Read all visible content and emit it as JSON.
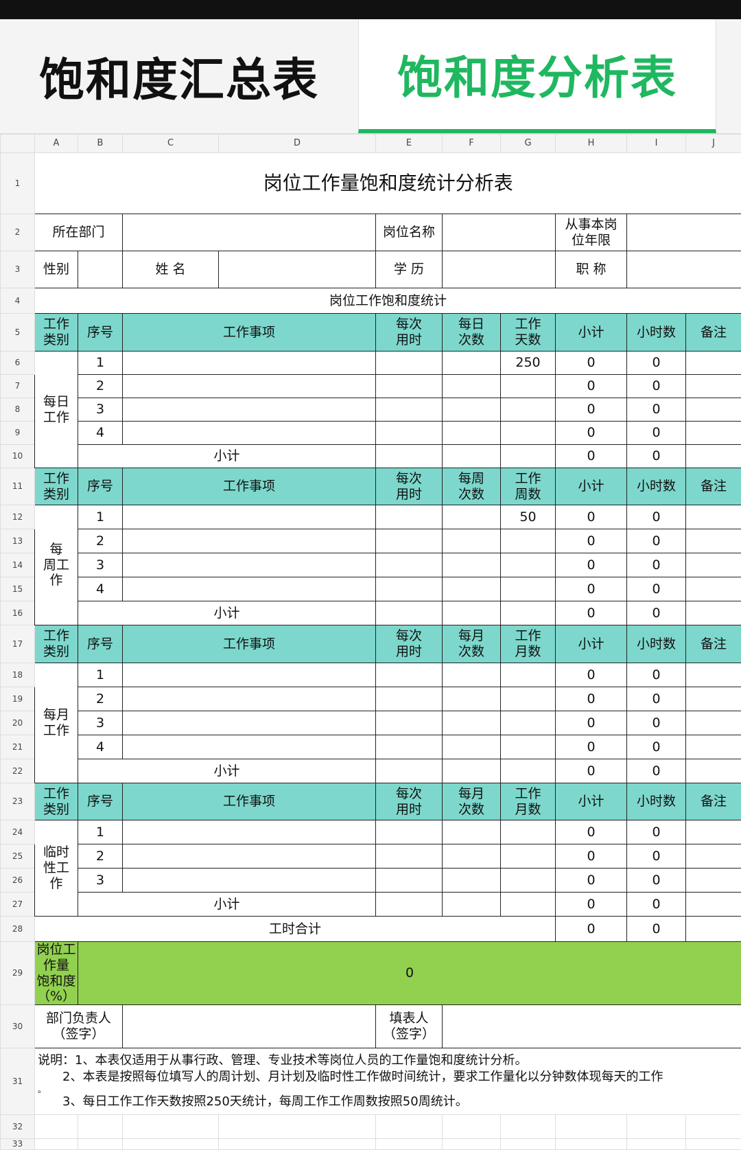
{
  "tabs": [
    {
      "label": "饱和度汇总表",
      "active": false
    },
    {
      "label": "饱和度分析表",
      "active": true
    }
  ],
  "accent_color": "#1fb760",
  "header_fill": "#7dd7cc",
  "saturation_fill": "#92d050",
  "columns": [
    "A",
    "B",
    "C",
    "D",
    "E",
    "F",
    "G",
    "H",
    "I",
    "J"
  ],
  "row_numbers": [
    "1",
    "2",
    "3",
    "4",
    "5",
    "6",
    "7",
    "8",
    "9",
    "10",
    "11",
    "12",
    "13",
    "14",
    "15",
    "16",
    "17",
    "18",
    "19",
    "20",
    "21",
    "22",
    "23",
    "24",
    "25",
    "26",
    "27",
    "28",
    "29",
    "30",
    "31",
    "32",
    "33"
  ],
  "sheet": {
    "title": "岗位工作量饱和度统计分析表",
    "dept_label": "所在部门",
    "post_label": "岗位名称",
    "years_label": "从事本岗\n位年限",
    "gender_label": "性别",
    "name_label": "姓 名",
    "edu_label": "学 历",
    "rank_label": "职 称",
    "section_title": "岗位工作饱和度统计",
    "total_label": "工时合计",
    "total_h": "0",
    "total_i": "0",
    "saturation_label": "岗位工作量\n饱和度（%）",
    "saturation_value": "0",
    "manager_label": "部门负责人\n（签字）",
    "filler_label": "填表人（签字）",
    "notes": [
      "说明：1、本表仅适用于从事行政、管理、专业技术等岗位人员的工作量饱和度统计分析。",
      "　　2、本表是按照每位填写人的周计划、月计划及临时性工作做时间统计，要求工作量化以分钟数体现每天的工作",
      "。",
      "　　3、每日工作工作天数按照250天统计，每周工作工作周数按照50周统计。"
    ]
  },
  "sections": {
    "daily": {
      "category": "每日\n工作",
      "headers": [
        "工作\n类别",
        "序号",
        "工作事项",
        "每次\n用时",
        "每日\n次数",
        "工作\n天数",
        "小计",
        "小时数",
        "备注"
      ],
      "rows": [
        {
          "seq": "1",
          "g": "250",
          "h": "0",
          "i": "0"
        },
        {
          "seq": "2",
          "h": "0",
          "i": "0"
        },
        {
          "seq": "3",
          "h": "0",
          "i": "0"
        },
        {
          "seq": "4",
          "h": "0",
          "i": "0"
        }
      ],
      "subtotal": {
        "label": "小计",
        "h": "0",
        "i": "0"
      }
    },
    "weekly": {
      "category": "每\n周工\n作",
      "headers": [
        "工作\n类别",
        "序号",
        "工作事项",
        "每次\n用时",
        "每周\n次数",
        "工作\n周数",
        "小计",
        "小时数",
        "备注"
      ],
      "rows": [
        {
          "seq": "1",
          "g": "50",
          "h": "0",
          "i": "0"
        },
        {
          "seq": "2",
          "h": "0",
          "i": "0"
        },
        {
          "seq": "3",
          "h": "0",
          "i": "0"
        },
        {
          "seq": "4",
          "h": "0",
          "i": "0"
        }
      ],
      "subtotal": {
        "label": "小计",
        "h": "0",
        "i": "0"
      }
    },
    "monthly": {
      "category": "每月\n工作",
      "headers": [
        "工作\n类别",
        "序号",
        "工作事项",
        "每次\n用时",
        "每月\n次数",
        "工作\n月数",
        "小计",
        "小时数",
        "备注"
      ],
      "rows": [
        {
          "seq": "1",
          "h": "0",
          "i": "0"
        },
        {
          "seq": "2",
          "h": "0",
          "i": "0"
        },
        {
          "seq": "3",
          "h": "0",
          "i": "0"
        },
        {
          "seq": "4",
          "h": "0",
          "i": "0"
        }
      ],
      "subtotal": {
        "label": "小计",
        "h": "0",
        "i": "0"
      }
    },
    "temporary": {
      "category": "临时\n性工\n作",
      "headers": [
        "工作\n类别",
        "序号",
        "工作事项",
        "每次\n用时",
        "每月\n次数",
        "工作\n月数",
        "小计",
        "小时数",
        "备注"
      ],
      "rows": [
        {
          "seq": "1",
          "h": "0",
          "i": "0"
        },
        {
          "seq": "2",
          "h": "0",
          "i": "0"
        },
        {
          "seq": "3",
          "h": "0",
          "i": "0"
        }
      ],
      "subtotal": {
        "label": "小计",
        "h": "0",
        "i": "0"
      }
    }
  }
}
